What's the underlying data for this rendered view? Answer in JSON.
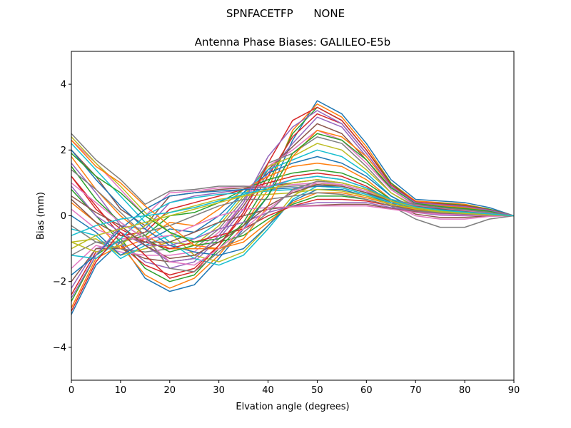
{
  "header": {
    "suptitle": "SPNFACETFP      NONE"
  },
  "chart_data": {
    "type": "line",
    "title": "Antenna Phase Biases: GALILEO-E5b",
    "xlabel": "Elvation angle (degrees)",
    "ylabel": "Bias (mm)",
    "xlim": [
      0,
      90
    ],
    "ylim": [
      -5,
      5
    ],
    "xticks": [
      0,
      10,
      20,
      30,
      40,
      50,
      60,
      70,
      80,
      90
    ],
    "yticks": [
      -4,
      -2,
      0,
      2,
      4
    ],
    "xtick_labels": [
      "0",
      "10",
      "20",
      "30",
      "40",
      "50",
      "60",
      "70",
      "80",
      "90"
    ],
    "ytick_labels": [
      "−4",
      "−2",
      "0",
      "2",
      "4"
    ],
    "grid": false,
    "legend": "none",
    "palette": [
      "#1f77b4",
      "#ff7f0e",
      "#2ca02c",
      "#d62728",
      "#9467bd",
      "#8c564b",
      "#e377c2",
      "#7f7f7f",
      "#bcbd22",
      "#17becf"
    ],
    "x": [
      0,
      5,
      10,
      15,
      20,
      25,
      30,
      35,
      40,
      45,
      50,
      55,
      60,
      65,
      70,
      75,
      80,
      85,
      90
    ],
    "series": [
      {
        "values": [
          -3.0,
          -1.5,
          -0.8,
          -1.9,
          -2.3,
          -2.1,
          -1.3,
          -0.4,
          0.6,
          2.3,
          3.5,
          3.1,
          2.2,
          1.1,
          0.5,
          0.45,
          0.4,
          0.25,
          0
        ]
      },
      {
        "values": [
          -2.8,
          -1.3,
          -0.9,
          -1.8,
          -2.2,
          -1.9,
          -1.2,
          -0.3,
          0.8,
          2.6,
          3.4,
          3.0,
          2.1,
          1.0,
          0.45,
          0.4,
          0.35,
          0.2,
          0
        ]
      },
      {
        "values": [
          -2.6,
          -1.2,
          -0.7,
          -1.6,
          -2.0,
          -1.8,
          -1.0,
          -0.2,
          1.0,
          2.5,
          3.3,
          2.9,
          2.0,
          1.0,
          0.4,
          0.38,
          0.32,
          0.2,
          0
        ]
      },
      {
        "values": [
          -2.4,
          -1.1,
          -0.9,
          -1.5,
          -1.8,
          -1.6,
          -0.9,
          0.0,
          1.2,
          2.4,
          3.1,
          2.8,
          1.9,
          0.9,
          0.38,
          0.35,
          0.3,
          0.18,
          0
        ]
      },
      {
        "values": [
          -2.2,
          -1.0,
          -0.8,
          -1.4,
          -1.6,
          -1.4,
          -0.7,
          0.2,
          1.3,
          2.2,
          3.0,
          2.7,
          1.8,
          0.9,
          0.35,
          0.32,
          0.28,
          0.16,
          0
        ]
      },
      {
        "values": [
          -2.0,
          -1.0,
          -1.0,
          -1.3,
          -1.4,
          -1.3,
          -0.6,
          0.3,
          1.4,
          2.1,
          2.8,
          2.5,
          1.7,
          0.8,
          0.32,
          0.3,
          0.25,
          0.15,
          0
        ]
      },
      {
        "values": [
          -1.6,
          -0.9,
          -1.1,
          -1.2,
          -1.2,
          -1.1,
          -0.5,
          0.4,
          1.5,
          2.0,
          2.6,
          2.3,
          1.6,
          0.8,
          0.3,
          0.28,
          0.22,
          0.14,
          0
        ]
      },
      {
        "values": [
          -1.2,
          -0.8,
          -1.0,
          -1.1,
          -1.0,
          -1.0,
          -0.4,
          0.5,
          1.6,
          1.9,
          2.4,
          2.2,
          1.5,
          0.7,
          0.28,
          0.25,
          0.2,
          0.12,
          0
        ]
      },
      {
        "values": [
          -0.8,
          -0.7,
          -1.2,
          -1.0,
          -0.8,
          -0.9,
          -0.3,
          0.6,
          1.5,
          1.8,
          2.2,
          2.0,
          1.4,
          0.7,
          0.25,
          0.22,
          0.18,
          0.1,
          0
        ]
      },
      {
        "values": [
          -0.4,
          -0.6,
          -1.3,
          -0.9,
          -0.6,
          -0.7,
          -0.2,
          0.7,
          1.4,
          1.7,
          2.0,
          1.8,
          1.3,
          0.6,
          0.22,
          0.2,
          0.16,
          0.1,
          0
        ]
      },
      {
        "values": [
          0.0,
          -0.5,
          -1.2,
          -0.8,
          -0.4,
          -0.5,
          0.0,
          0.7,
          1.3,
          1.6,
          1.8,
          1.6,
          1.2,
          0.6,
          0.2,
          0.18,
          0.14,
          0.08,
          0
        ]
      },
      {
        "values": [
          0.4,
          -0.2,
          -1.0,
          -0.7,
          -0.2,
          -0.3,
          0.2,
          0.8,
          1.2,
          1.5,
          1.6,
          1.5,
          1.1,
          0.5,
          0.18,
          0.15,
          0.12,
          0.07,
          0
        ]
      },
      {
        "values": [
          0.8,
          0.0,
          -0.8,
          -0.6,
          0.0,
          0.1,
          0.4,
          0.8,
          1.1,
          1.3,
          1.4,
          1.3,
          1.0,
          0.5,
          0.15,
          0.1,
          0.08,
          0.05,
          0
        ]
      },
      {
        "values": [
          1.2,
          0.3,
          -0.6,
          -0.5,
          0.2,
          0.4,
          0.6,
          0.8,
          1.0,
          1.2,
          1.3,
          1.2,
          0.9,
          0.45,
          0.12,
          0.06,
          0.04,
          0.03,
          0
        ]
      },
      {
        "values": [
          1.6,
          0.7,
          -0.3,
          -0.4,
          0.4,
          0.6,
          0.7,
          0.8,
          0.9,
          1.1,
          1.2,
          1.1,
          0.85,
          0.4,
          0.1,
          0.02,
          0.0,
          0.02,
          0
        ]
      },
      {
        "values": [
          2.0,
          1.2,
          0.2,
          -0.3,
          0.6,
          0.7,
          0.8,
          0.85,
          0.9,
          1.0,
          1.1,
          1.0,
          0.8,
          0.4,
          0.05,
          -0.05,
          -0.05,
          0.0,
          0
        ]
      },
      {
        "values": [
          2.3,
          1.6,
          0.8,
          0.0,
          0.7,
          0.75,
          0.85,
          0.9,
          0.9,
          0.95,
          1.0,
          0.95,
          0.75,
          0.35,
          0.0,
          -0.1,
          -0.1,
          -0.02,
          0
        ]
      },
      {
        "values": [
          2.5,
          1.7,
          1.1,
          0.35,
          0.75,
          0.8,
          0.9,
          0.9,
          0.85,
          0.9,
          0.95,
          0.9,
          0.7,
          0.3,
          -0.1,
          -0.35,
          -0.35,
          -0.1,
          0
        ]
      },
      {
        "values": [
          2.4,
          1.6,
          0.9,
          0.1,
          -0.5,
          -1.2,
          -1.4,
          -1.1,
          -0.3,
          0.6,
          1.0,
          0.9,
          0.7,
          0.5,
          0.3,
          0.2,
          0.15,
          0.1,
          0
        ]
      },
      {
        "values": [
          2.2,
          1.4,
          0.6,
          -0.2,
          -0.8,
          -1.3,
          -1.5,
          -1.2,
          -0.4,
          0.5,
          0.9,
          0.85,
          0.65,
          0.45,
          0.28,
          0.18,
          0.12,
          0.08,
          0
        ]
      },
      {
        "values": [
          2.0,
          1.1,
          0.3,
          -0.4,
          -0.9,
          -1.1,
          -1.2,
          -1.0,
          -0.3,
          0.45,
          0.8,
          0.8,
          0.6,
          0.4,
          0.25,
          0.16,
          0.1,
          0.06,
          0
        ]
      },
      {
        "values": [
          1.8,
          0.8,
          0.0,
          -0.6,
          -1.0,
          -1.0,
          -1.0,
          -0.8,
          -0.2,
          0.4,
          0.7,
          0.7,
          0.55,
          0.35,
          0.22,
          0.14,
          0.08,
          0.05,
          0
        ]
      },
      {
        "values": [
          1.5,
          0.5,
          -0.2,
          -0.7,
          -1.1,
          -0.9,
          -0.8,
          -0.6,
          -0.1,
          0.35,
          0.6,
          0.6,
          0.5,
          0.3,
          0.2,
          0.12,
          0.06,
          0.04,
          0
        ]
      },
      {
        "values": [
          1.2,
          0.2,
          -0.4,
          -0.8,
          -1.0,
          -0.8,
          -0.6,
          -0.4,
          0.0,
          0.3,
          0.5,
          0.5,
          0.45,
          0.3,
          0.18,
          0.1,
          0.05,
          0.03,
          0
        ]
      },
      {
        "values": [
          0.9,
          0.0,
          -0.5,
          -0.9,
          -0.9,
          -0.7,
          -0.4,
          -0.2,
          0.1,
          0.3,
          0.4,
          0.4,
          0.4,
          0.25,
          0.15,
          0.08,
          0.04,
          0.02,
          0
        ]
      },
      {
        "values": [
          0.5,
          -0.2,
          -0.6,
          -0.8,
          -0.8,
          -0.5,
          -0.2,
          0.0,
          0.2,
          0.28,
          0.32,
          0.35,
          0.35,
          0.22,
          0.12,
          0.06,
          0.03,
          0.02,
          0
        ]
      },
      {
        "values": [
          0.2,
          -0.4,
          -0.7,
          -0.7,
          -0.6,
          -0.3,
          0.0,
          0.2,
          0.25,
          0.27,
          0.3,
          0.3,
          0.3,
          0.2,
          0.1,
          0.05,
          0.02,
          0.01,
          0
        ]
      },
      {
        "values": [
          -0.3,
          -0.8,
          -0.8,
          -0.5,
          -0.3,
          0.0,
          0.3,
          0.5,
          0.5,
          0.6,
          0.7,
          0.65,
          0.5,
          0.3,
          0.15,
          0.1,
          0.05,
          0.02,
          0
        ]
      },
      {
        "values": [
          -0.8,
          -1.1,
          -0.9,
          -0.3,
          0.1,
          0.3,
          0.5,
          0.6,
          0.65,
          0.7,
          0.8,
          0.75,
          0.6,
          0.35,
          0.2,
          0.12,
          0.07,
          0.03,
          0
        ]
      },
      {
        "values": [
          -1.2,
          -1.3,
          -0.7,
          0.0,
          0.4,
          0.55,
          0.65,
          0.7,
          0.75,
          0.8,
          0.9,
          0.85,
          0.65,
          0.4,
          0.25,
          0.15,
          0.1,
          0.05,
          0
        ]
      },
      {
        "values": [
          -1.8,
          -1.2,
          -0.4,
          0.2,
          0.6,
          0.7,
          0.75,
          0.8,
          0.8,
          0.85,
          0.9,
          0.9,
          0.7,
          0.45,
          0.3,
          0.2,
          0.12,
          0.06,
          0
        ]
      },
      {
        "values": [
          2.3,
          1.5,
          1.0,
          0.3,
          -0.3,
          -0.9,
          -1.0,
          -0.7,
          0.3,
          1.8,
          2.6,
          2.4,
          1.8,
          0.9,
          0.4,
          0.3,
          0.25,
          0.15,
          0
        ]
      },
      {
        "values": [
          1.9,
          1.2,
          0.7,
          0.0,
          -0.5,
          -0.8,
          -0.7,
          -0.3,
          0.6,
          1.9,
          2.5,
          2.3,
          1.7,
          0.85,
          0.38,
          0.28,
          0.22,
          0.14,
          0
        ]
      },
      {
        "values": [
          -2.9,
          -1.4,
          -0.5,
          -1.2,
          -1.9,
          -1.7,
          -0.9,
          0.1,
          1.6,
          2.9,
          3.3,
          2.9,
          2.0,
          0.95,
          0.42,
          0.36,
          0.3,
          0.18,
          0
        ]
      },
      {
        "values": [
          -2.5,
          -1.2,
          -0.3,
          -0.9,
          -1.4,
          -1.3,
          -0.6,
          0.4,
          1.8,
          2.7,
          3.2,
          2.8,
          1.9,
          0.9,
          0.4,
          0.34,
          0.28,
          0.17,
          0
        ]
      },
      {
        "values": [
          0.6,
          0.1,
          -0.3,
          -0.9,
          -1.3,
          -1.2,
          -0.8,
          -0.3,
          0.3,
          0.7,
          0.95,
          0.9,
          0.7,
          0.45,
          0.3,
          0.22,
          0.15,
          0.08,
          0
        ]
      },
      {
        "values": [
          1.0,
          0.4,
          -0.2,
          -0.7,
          -1.4,
          -1.5,
          -1.0,
          -0.4,
          0.2,
          0.75,
          1.0,
          0.95,
          0.75,
          0.5,
          0.32,
          0.24,
          0.16,
          0.09,
          0
        ]
      },
      {
        "values": [
          1.4,
          0.8,
          0.1,
          -0.6,
          -1.6,
          -1.7,
          -1.1,
          -0.5,
          0.1,
          0.8,
          1.05,
          1.0,
          0.8,
          0.5,
          0.34,
          0.25,
          0.18,
          0.1,
          0
        ]
      },
      {
        "values": [
          -1.0,
          -0.6,
          -0.4,
          -0.2,
          0.0,
          0.2,
          0.4,
          0.6,
          0.8,
          1.0,
          1.1,
          1.0,
          0.8,
          0.45,
          0.25,
          0.15,
          0.1,
          0.05,
          0
        ]
      },
      {
        "values": [
          -0.6,
          -0.3,
          -0.1,
          0.0,
          0.1,
          0.25,
          0.45,
          0.65,
          0.85,
          1.1,
          1.2,
          1.1,
          0.85,
          0.5,
          0.27,
          0.17,
          0.11,
          0.06,
          0
        ]
      }
    ]
  }
}
